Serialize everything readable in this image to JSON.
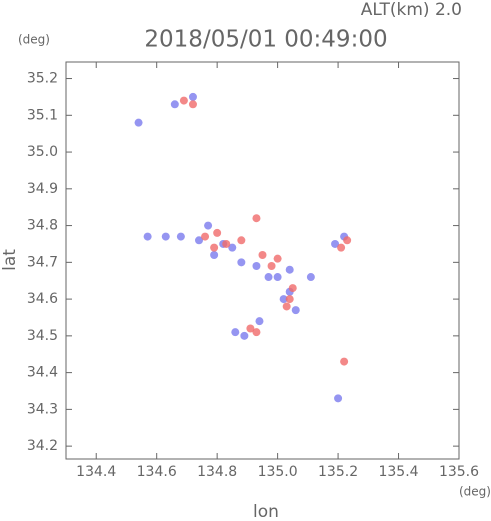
{
  "chart_data": {
    "type": "scatter",
    "title": "2018/05/01 00:49:00",
    "subtitle": "ALT(km) 2.0",
    "x_label": "lon",
    "y_label": "lat",
    "x_unit": "(deg)",
    "y_unit": "(deg)",
    "xlim": [
      134.3,
      135.6
    ],
    "ylim": [
      34.165,
      35.245
    ],
    "xticks": [
      134.4,
      134.6,
      134.8,
      {
        "value": 135,
        "label": "135.0"
      },
      135.2,
      135.4,
      135.6
    ],
    "yticks": [
      34.2,
      34.3,
      34.4,
      34.5,
      34.6,
      34.7,
      34.8,
      34.9,
      {
        "value": 35,
        "label": "35.0"
      },
      35.1,
      35.2
    ],
    "series": [
      {
        "color": "#7b7bee",
        "x": [
          134.54,
          134.66,
          134.72,
          134.68,
          134.63,
          134.74,
          134.79,
          134.85,
          134.88,
          134.93,
          134.97,
          135.0,
          135.02,
          135.06,
          134.89,
          134.86,
          134.94,
          135.2,
          135.19,
          135.22,
          135.04,
          134.82,
          134.77,
          134.57,
          135.04,
          135.11
        ],
        "values": [
          35.08,
          35.13,
          35.15,
          34.77,
          34.77,
          34.76,
          34.72,
          34.74,
          34.7,
          34.69,
          34.66,
          34.66,
          34.6,
          34.57,
          34.5,
          34.51,
          34.54,
          34.33,
          34.75,
          34.77,
          34.62,
          34.75,
          34.8,
          34.77,
          34.68,
          34.66
        ]
      },
      {
        "color": "#f06a6a",
        "x": [
          134.69,
          134.72,
          134.76,
          134.79,
          134.83,
          134.93,
          134.95,
          135.0,
          135.05,
          135.04,
          134.93,
          134.91,
          135.23,
          135.21,
          135.22,
          134.98,
          134.88,
          135.03,
          134.8
        ],
        "values": [
          35.14,
          35.13,
          34.77,
          34.74,
          34.75,
          34.82,
          34.72,
          34.71,
          34.63,
          34.6,
          34.51,
          34.52,
          34.76,
          34.74,
          34.43,
          34.69,
          34.76,
          34.58,
          34.78
        ]
      }
    ]
  }
}
